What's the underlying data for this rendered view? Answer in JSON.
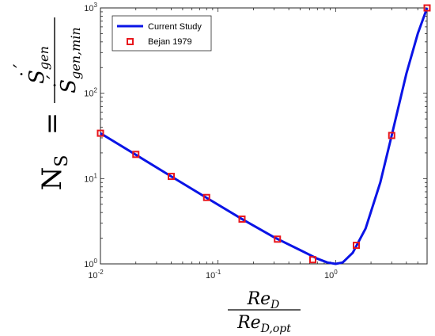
{
  "chart_data": {
    "type": "line",
    "x_scale": "log",
    "y_scale": "log",
    "xlim": [
      0.01,
      6
    ],
    "ylim": [
      1,
      1000
    ],
    "x_ticks": [
      {
        "value": 0.01,
        "base": "10",
        "exp": "-2"
      },
      {
        "value": 0.1,
        "base": "10",
        "exp": "-1"
      },
      {
        "value": 1,
        "base": "10",
        "exp": "0"
      }
    ],
    "y_ticks": [
      {
        "value": 1,
        "base": "10",
        "exp": "0"
      },
      {
        "value": 10,
        "base": "10",
        "exp": "1"
      },
      {
        "value": 100,
        "base": "10",
        "exp": "2"
      },
      {
        "value": 1000,
        "base": "10",
        "exp": "3"
      }
    ],
    "xlabel": {
      "num": "Re",
      "num_sub": "D",
      "den": "Re",
      "den_sub": "D,opt"
    },
    "ylabel": {
      "lhs": "N",
      "lhs_sub": "S",
      "eq": "=",
      "num": "S",
      "num_sub": "gen",
      "den": "S",
      "den_sub": "gen,min"
    },
    "legend_position": "top-left",
    "grid": false,
    "series": [
      {
        "name": "Current Study",
        "style": "line",
        "color": "#0a14e6",
        "x": [
          0.01,
          0.02,
          0.04,
          0.08,
          0.16,
          0.3,
          0.5,
          0.7,
          0.85,
          1.0,
          1.15,
          1.4,
          1.8,
          2.4,
          3.0,
          4.0,
          5.0,
          6.0
        ],
        "y": [
          34,
          19.0,
          10.6,
          5.95,
          3.35,
          2.05,
          1.45,
          1.15,
          1.04,
          1.0,
          1.04,
          1.35,
          2.6,
          9.0,
          32,
          170,
          500,
          1000
        ]
      },
      {
        "name": "Bejan 1979",
        "style": "marker",
        "color": "#e8161c",
        "x": [
          0.01,
          0.02,
          0.04,
          0.08,
          0.16,
          0.32,
          0.64,
          1.5,
          3.0,
          6.0
        ],
        "y": [
          34,
          19.2,
          10.6,
          6.0,
          3.35,
          1.95,
          1.12,
          1.65,
          32,
          1000
        ]
      }
    ]
  }
}
